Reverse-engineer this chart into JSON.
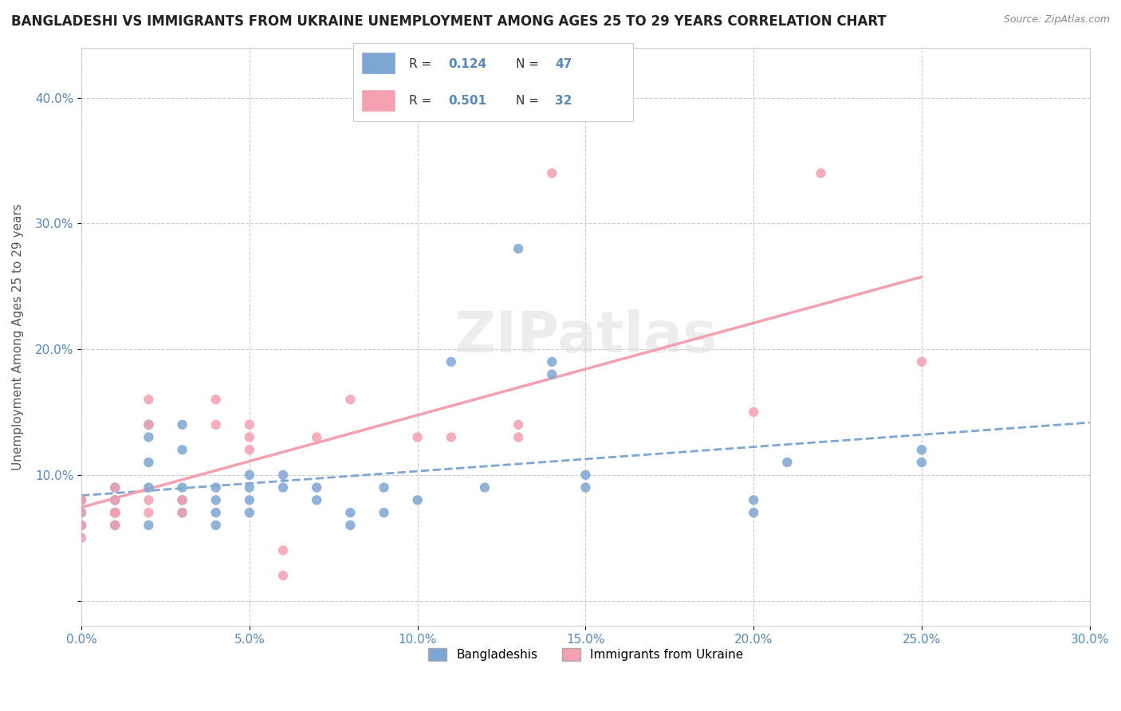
{
  "title": "BANGLADESHI VS IMMIGRANTS FROM UKRAINE UNEMPLOYMENT AMONG AGES 25 TO 29 YEARS CORRELATION CHART",
  "source": "Source: ZipAtlas.com",
  "xlabel_bottom": "",
  "ylabel": "Unemployment Among Ages 25 to 29 years",
  "x_ticks_labels": [
    "0.0%",
    "5.0%",
    "10.0%",
    "15.0%",
    "20.0%",
    "25.0%",
    "30.0%"
  ],
  "x_ticks": [
    0.0,
    0.05,
    0.1,
    0.15,
    0.2,
    0.25,
    0.3
  ],
  "y_ticks_labels": [
    "",
    "10.0%",
    "20.0%",
    "30.0%",
    "40.0%"
  ],
  "y_ticks": [
    0.0,
    0.1,
    0.2,
    0.3,
    0.4
  ],
  "xlim": [
    0.0,
    0.3
  ],
  "ylim": [
    -0.02,
    0.44
  ],
  "blue_color": "#7EA6D4",
  "pink_color": "#F4A0B0",
  "blue_line_color": "#7EA6D4",
  "pink_line_color": "#F4A0B0",
  "R_blue": 0.124,
  "N_blue": 47,
  "R_pink": 0.501,
  "N_pink": 32,
  "watermark": "ZIPatlas",
  "legend_blue_label": "Bangladeshis",
  "legend_pink_label": "Immigrants from Ukraine",
  "blue_scatter_x": [
    0.0,
    0.0,
    0.0,
    0.01,
    0.01,
    0.01,
    0.01,
    0.01,
    0.02,
    0.02,
    0.02,
    0.02,
    0.02,
    0.03,
    0.03,
    0.03,
    0.03,
    0.03,
    0.04,
    0.04,
    0.04,
    0.04,
    0.05,
    0.05,
    0.05,
    0.05,
    0.06,
    0.06,
    0.07,
    0.07,
    0.08,
    0.08,
    0.09,
    0.09,
    0.1,
    0.11,
    0.12,
    0.13,
    0.14,
    0.14,
    0.15,
    0.15,
    0.2,
    0.2,
    0.21,
    0.25,
    0.25
  ],
  "blue_scatter_y": [
    0.07,
    0.06,
    0.08,
    0.07,
    0.06,
    0.08,
    0.09,
    0.07,
    0.06,
    0.09,
    0.11,
    0.13,
    0.14,
    0.07,
    0.08,
    0.09,
    0.12,
    0.14,
    0.08,
    0.07,
    0.09,
    0.06,
    0.09,
    0.1,
    0.08,
    0.07,
    0.1,
    0.09,
    0.08,
    0.09,
    0.07,
    0.06,
    0.09,
    0.07,
    0.08,
    0.19,
    0.09,
    0.28,
    0.19,
    0.18,
    0.1,
    0.09,
    0.07,
    0.08,
    0.11,
    0.11,
    0.12
  ],
  "pink_scatter_x": [
    0.0,
    0.0,
    0.0,
    0.0,
    0.01,
    0.01,
    0.01,
    0.01,
    0.01,
    0.02,
    0.02,
    0.02,
    0.02,
    0.03,
    0.03,
    0.04,
    0.04,
    0.05,
    0.05,
    0.05,
    0.06,
    0.06,
    0.07,
    0.08,
    0.1,
    0.11,
    0.13,
    0.13,
    0.14,
    0.2,
    0.22,
    0.25
  ],
  "pink_scatter_y": [
    0.07,
    0.06,
    0.08,
    0.05,
    0.06,
    0.07,
    0.08,
    0.09,
    0.07,
    0.08,
    0.16,
    0.14,
    0.07,
    0.07,
    0.08,
    0.14,
    0.16,
    0.12,
    0.13,
    0.14,
    0.04,
    0.02,
    0.13,
    0.16,
    0.13,
    0.13,
    0.14,
    0.13,
    0.34,
    0.15,
    0.34,
    0.19
  ],
  "grid_color": "#CCCCCC",
  "background_color": "#FFFFFF",
  "title_fontsize": 12,
  "axis_label_fontsize": 11,
  "tick_fontsize": 11
}
